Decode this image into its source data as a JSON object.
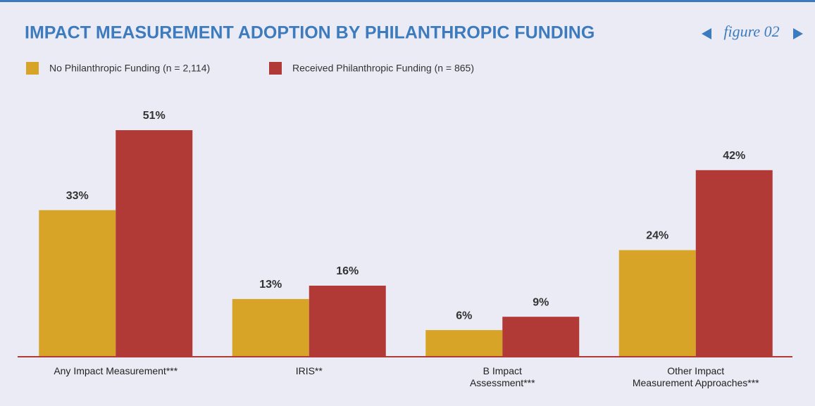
{
  "chart_data": {
    "type": "bar",
    "title": "IMPACT MEASUREMENT ADOPTION BY PHILANTHROPIC FUNDING",
    "figure_label": "figure 02",
    "categories": [
      "Any Impact Measurement***",
      "IRIS**",
      "B Impact\nAssessment***",
      "Other Impact\nMeasurement Approaches***"
    ],
    "series": [
      {
        "name": "No Philanthropic Funding (n = 2,114)",
        "color": "#d7a427",
        "values": [
          33,
          13,
          6,
          24
        ],
        "value_labels": [
          "33%",
          "13%",
          "6%",
          "24%"
        ]
      },
      {
        "name": "Received Philanthropic Funding (n = 865)",
        "color": "#b23a36",
        "values": [
          51,
          16,
          9,
          42
        ],
        "value_labels": [
          "51%",
          "16%",
          "9%",
          "42%"
        ]
      }
    ]
  }
}
